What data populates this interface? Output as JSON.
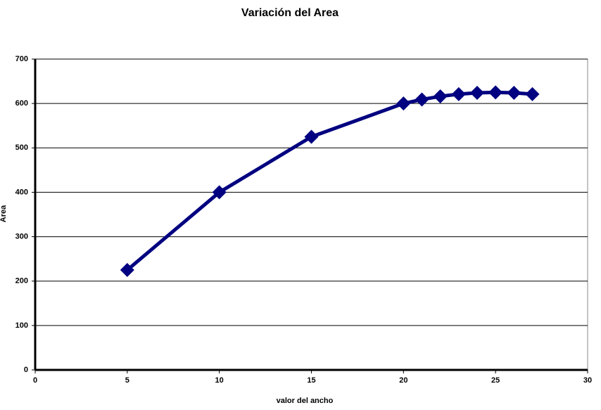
{
  "chart_data": {
    "type": "line",
    "title": "Variación del Area",
    "x_label": "valor del ancho",
    "y_label": "Area",
    "x": [
      5,
      10,
      15,
      20,
      21,
      22,
      23,
      24,
      25,
      26,
      27
    ],
    "series": [
      {
        "name": "Area",
        "color": "#000080",
        "values": [
          225,
          400,
          525,
          600,
          609,
          616,
          621,
          624,
          625,
          624,
          621
        ]
      }
    ],
    "xlim": [
      0,
      30
    ],
    "xticks": [
      0,
      5,
      10,
      15,
      20,
      25,
      30
    ],
    "ylim": [
      0,
      700
    ],
    "yticks": [
      0,
      100,
      200,
      300,
      400,
      500,
      600,
      700
    ],
    "grid": true
  }
}
